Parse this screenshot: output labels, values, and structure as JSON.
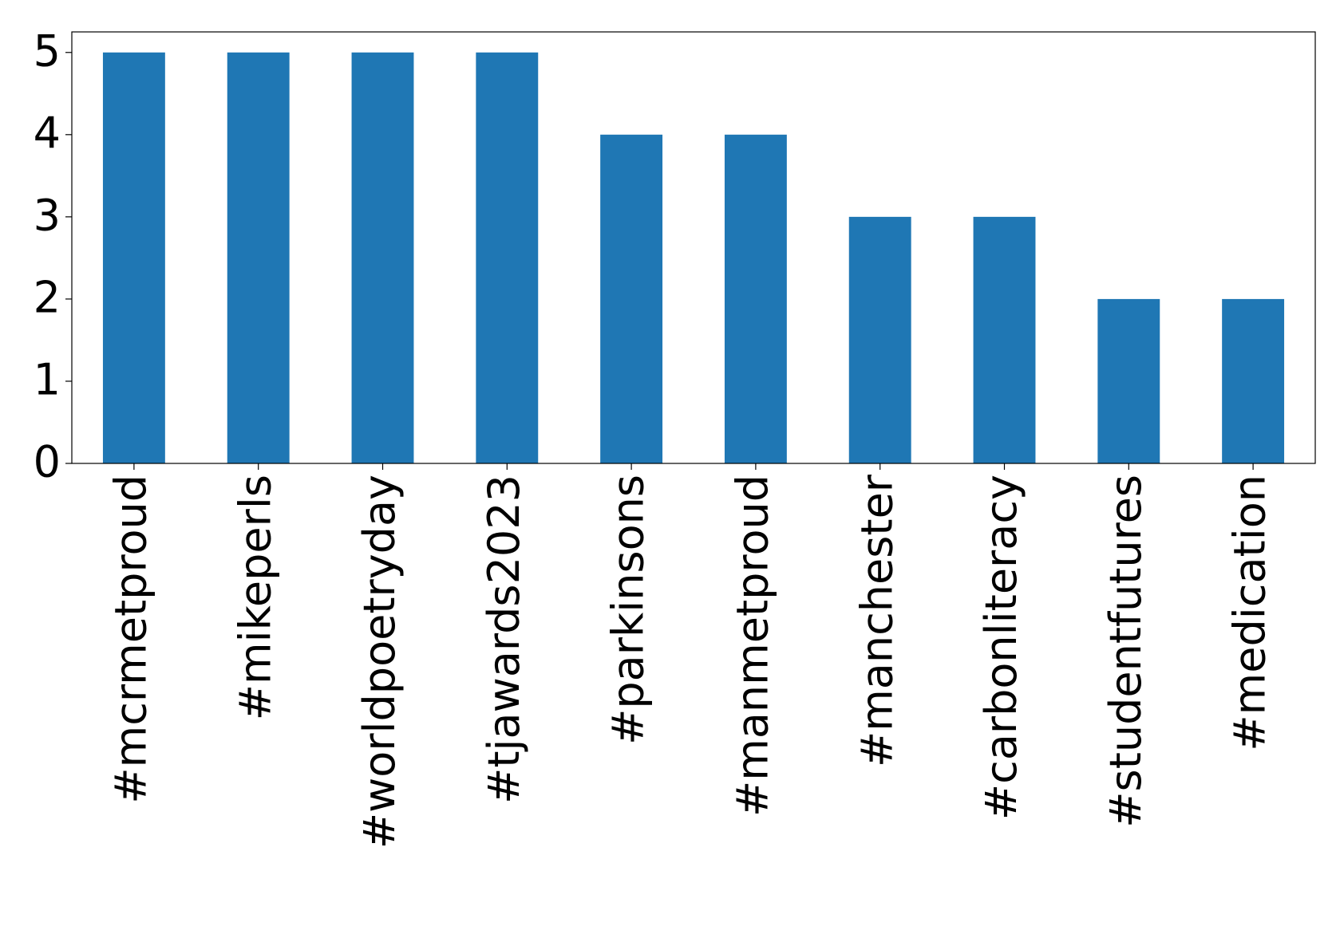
{
  "chart_data": {
    "type": "bar",
    "categories": [
      "#mcrmetproud",
      "#mikeperls",
      "#worldpoetryday",
      "#tjawards2023",
      "#parkinsons",
      "#manmetproud",
      "#manchester",
      "#carbonliteracy",
      "#studentfutures",
      "#medication"
    ],
    "values": [
      5,
      5,
      5,
      5,
      4,
      4,
      3,
      3,
      2,
      2
    ],
    "color": "#1f77b4",
    "ylim": [
      0,
      5.25
    ],
    "yticks": [
      0,
      1,
      2,
      3,
      4,
      5
    ],
    "grid": false
  }
}
